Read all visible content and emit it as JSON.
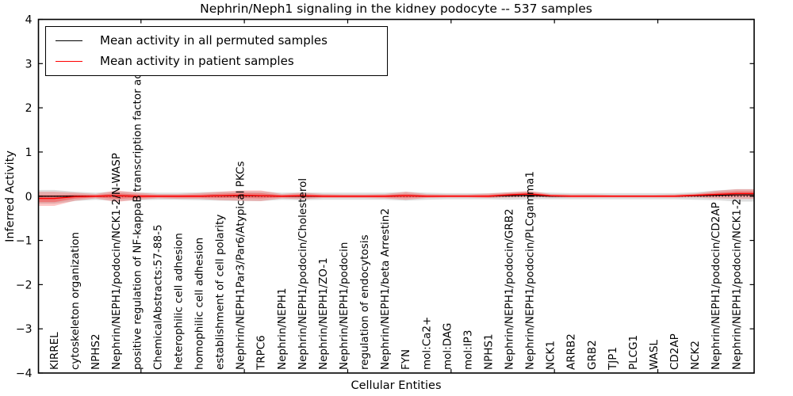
{
  "chart_data": {
    "type": "line",
    "title": "Nephrin/Neph1 signaling in the kidney podocyte -- 537 samples",
    "xlabel": "Cellular Entities",
    "ylabel": "Inferred Activity",
    "ylim": [
      -4,
      4
    ],
    "yticks": [
      4,
      3,
      2,
      1,
      0,
      -1,
      -2,
      -3,
      -4
    ],
    "xtick_indices": [
      4,
      9,
      14,
      19,
      24,
      29
    ],
    "grid": false,
    "legend_position": "upper left",
    "zero_line": {
      "color": "#000000",
      "style": "dotted"
    },
    "categories": [
      "KIRREL",
      "cytoskeleton organization",
      "NPHS2",
      "Nephrin/NEPH1/podocin/NCK1-2/N-WASP",
      "positive regulation of NF-kappaB transcription factor activity",
      "ChemicalAbstracts:57-88-5",
      "heterophilic cell adhesion",
      "homophilic cell adhesion",
      "establishment of cell polarity",
      "Nephrin/NEPH1Par3/Par6/Atypical PKCs",
      "TRPC6",
      "Nephrin/NEPH1",
      "Nephrin/NEPH1/podocin/Cholesterol",
      "Nephrin/NEPH1/ZO-1",
      "Nephrin/NEPH1/podocin",
      "regulation of endocytosis",
      "Nephrin/NEPH1/beta Arrestin2",
      "FYN",
      "mol:Ca2+",
      "mol:DAG",
      "mol:IP3",
      "NPHS1",
      "Nephrin/NEPH1/podocin/GRB2",
      "Nephrin/NEPH1/podocin/PLCgamma1",
      "NCK1",
      "ARRB2",
      "GRB2",
      "TJP1",
      "PLCG1",
      "WASL",
      "CD2AP",
      "NCK2",
      "Nephrin/NEPH1/podocin/CD2AP",
      "Nephrin/NEPH1/podocin/NCK1-2"
    ],
    "series": [
      {
        "name": "Mean activity in all permuted samples",
        "color": "#000000",
        "style": "solid",
        "values": [
          0.0,
          0.0,
          0.0,
          0.01,
          0.0,
          0.0,
          0.0,
          0.0,
          0.01,
          0.01,
          0.01,
          0.0,
          0.0,
          0.0,
          0.0,
          0.0,
          0.0,
          0.01,
          0.0,
          0.0,
          0.0,
          0.0,
          0.01,
          0.02,
          0.0,
          0.0,
          0.0,
          0.0,
          0.0,
          0.0,
          0.0,
          0.01,
          0.02,
          0.03
        ]
      },
      {
        "name": "Mean activity in patient samples",
        "color": "#ff0000",
        "style": "solid",
        "values": [
          -0.05,
          -0.01,
          0.0,
          0.01,
          0.0,
          0.0,
          0.0,
          0.0,
          0.01,
          0.02,
          0.01,
          0.0,
          0.01,
          0.0,
          0.0,
          0.0,
          0.0,
          0.01,
          0.0,
          0.0,
          0.0,
          0.0,
          0.03,
          0.05,
          0.01,
          0.0,
          0.0,
          0.0,
          0.0,
          0.0,
          0.0,
          0.02,
          0.04,
          0.06
        ]
      }
    ],
    "bands": [
      {
        "name": "permuted-envelope",
        "color": "#888888",
        "opacity": 0.28,
        "upper": [
          0.14,
          0.1,
          0.08,
          0.11,
          0.09,
          0.08,
          0.08,
          0.09,
          0.1,
          0.11,
          0.11,
          0.08,
          0.09,
          0.08,
          0.08,
          0.08,
          0.08,
          0.1,
          0.08,
          0.07,
          0.07,
          0.07,
          0.09,
          0.1,
          0.08,
          0.07,
          0.07,
          0.07,
          0.07,
          0.07,
          0.07,
          0.09,
          0.13,
          0.16
        ],
        "lower": [
          -0.17,
          -0.11,
          -0.08,
          -0.11,
          -0.09,
          -0.08,
          -0.08,
          -0.09,
          -0.1,
          -0.11,
          -0.11,
          -0.08,
          -0.09,
          -0.08,
          -0.08,
          -0.08,
          -0.08,
          -0.1,
          -0.08,
          -0.07,
          -0.07,
          -0.07,
          -0.08,
          -0.07,
          -0.07,
          -0.07,
          -0.07,
          -0.07,
          -0.07,
          -0.07,
          -0.07,
          -0.08,
          -0.09,
          -0.12
        ]
      },
      {
        "name": "patient-envelope-outer",
        "color": "#ff0000",
        "opacity": 0.22,
        "upper": [
          0.1,
          0.08,
          0.05,
          0.13,
          0.08,
          0.05,
          0.05,
          0.07,
          0.1,
          0.13,
          0.13,
          0.05,
          0.08,
          0.05,
          0.04,
          0.04,
          0.05,
          0.1,
          0.05,
          0.04,
          0.04,
          0.06,
          0.09,
          0.12,
          0.05,
          0.04,
          0.04,
          0.03,
          0.03,
          0.03,
          0.04,
          0.06,
          0.12,
          0.16
        ],
        "lower": [
          -0.22,
          -0.1,
          -0.05,
          -0.13,
          -0.08,
          -0.05,
          -0.06,
          -0.06,
          -0.09,
          -0.1,
          -0.11,
          -0.05,
          -0.07,
          -0.04,
          -0.04,
          -0.04,
          -0.05,
          -0.08,
          -0.04,
          -0.03,
          -0.03,
          -0.04,
          -0.03,
          -0.02,
          -0.03,
          -0.03,
          -0.03,
          -0.03,
          -0.03,
          -0.03,
          -0.03,
          -0.03,
          -0.05,
          -0.06
        ]
      },
      {
        "name": "patient-envelope-inner",
        "color": "#ff0000",
        "opacity": 0.3,
        "scale_of": 1,
        "factor": 0.5
      }
    ]
  },
  "legend": {
    "items": [
      {
        "label": "Mean activity in all permuted samples",
        "color": "#000000"
      },
      {
        "label": "Mean activity in patient samples",
        "color": "#ff0000"
      }
    ]
  }
}
